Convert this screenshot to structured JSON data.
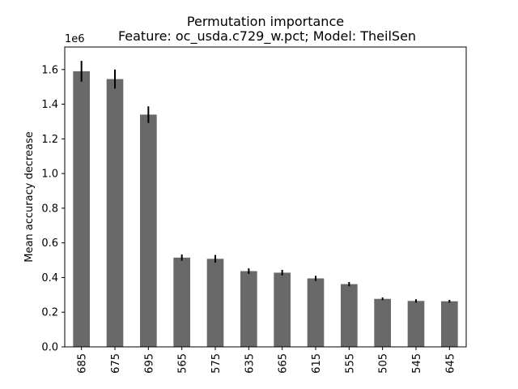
{
  "chart_data": {
    "type": "bar",
    "title": "Permutation importance",
    "subtitle": "Feature: oc_usda.c729_w.pct; Model: TheilSen",
    "xlabel": "",
    "ylabel": "Mean accuracy decrease",
    "y_offset_label": "1e6",
    "ylim": [
      0,
      1.73
    ],
    "yticks": [
      0.0,
      0.2,
      0.4,
      0.6,
      0.8,
      1.0,
      1.2,
      1.4,
      1.6
    ],
    "ytick_labels": [
      "0.0",
      "0.2",
      "0.4",
      "0.6",
      "0.8",
      "1.0",
      "1.2",
      "1.4",
      "1.6"
    ],
    "categories": [
      "685",
      "675",
      "695",
      "565",
      "575",
      "635",
      "665",
      "615",
      "555",
      "505",
      "545",
      "645"
    ],
    "values": [
      1.59,
      1.545,
      1.34,
      0.515,
      0.508,
      0.437,
      0.428,
      0.395,
      0.362,
      0.277,
      0.265,
      0.263
    ],
    "errors": [
      0.06,
      0.055,
      0.048,
      0.018,
      0.022,
      0.016,
      0.016,
      0.015,
      0.012,
      0.008,
      0.01,
      0.008
    ],
    "grid": false,
    "legend": "none",
    "colors": {
      "bar": "#696969",
      "error": "#000000"
    }
  }
}
